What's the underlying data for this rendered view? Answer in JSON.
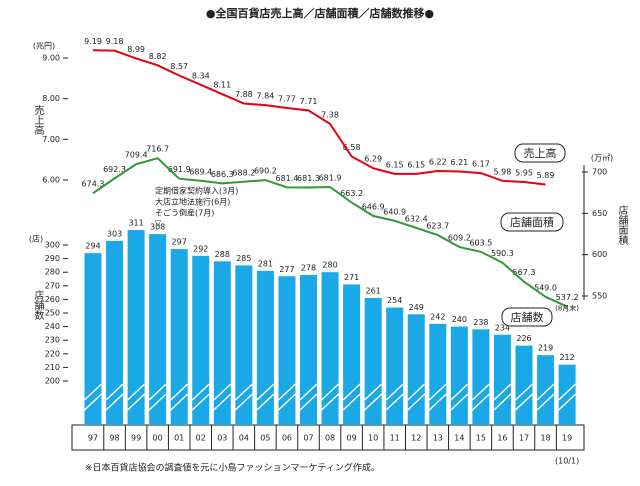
{
  "chart_data": {
    "type": "bar_line",
    "title": "●全国百貨店売上高／店舗面積／店舗数推移●",
    "footnote": "※日本百貨店協会の調査値を元に小島ファッションマーケティング作成。",
    "categories": [
      "97",
      "98",
      "99",
      "00",
      "01",
      "02",
      "03",
      "04",
      "05",
      "06",
      "07",
      "08",
      "09",
      "10",
      "11",
      "12",
      "13",
      "14",
      "15",
      "16",
      "17",
      "18",
      "19"
    ],
    "last_category_note": "(10/1)",
    "ylabel": "売上高",
    "yunit": "(兆円)",
    "ylim": [
      6,
      9
    ],
    "yticks": [
      {
        "value": 6,
        "label": "6.00"
      },
      {
        "value": 7,
        "label": "7.00"
      },
      {
        "value": 8,
        "label": "8.00"
      },
      {
        "value": 9,
        "label": "9.00"
      }
    ],
    "y2label": "店舗面積",
    "y2unit": "(万㎡)",
    "y2lim": [
      550,
      700
    ],
    "y2ticks": [
      550,
      600,
      650,
      700
    ],
    "y3label": "店舗数",
    "y3unit": "(店)",
    "y3lim": [
      200,
      300
    ],
    "y3ticks": [
      200,
      210,
      220,
      230,
      240,
      250,
      260,
      270,
      280,
      290,
      300
    ],
    "series": [
      {
        "name": "店舗数",
        "type": "bar",
        "axis": "y3",
        "color": "#1ba8e6",
        "values": [
          294,
          303,
          311,
          308,
          297,
          292,
          288,
          285,
          281,
          277,
          278,
          280,
          271,
          261,
          254,
          249,
          242,
          240,
          238,
          234,
          226,
          219,
          212
        ]
      },
      {
        "name": "店舗面積",
        "type": "line",
        "axis": "y2",
        "color": "#2e9b36",
        "values": [
          674.3,
          692.3,
          709.4,
          716.7,
          691.9,
          689.4,
          686.3,
          688.2,
          690.2,
          681.4,
          681.3,
          681.9,
          663.2,
          646.9,
          640.9,
          632.4,
          623.7,
          609.2,
          603.5,
          590.3,
          567.3,
          549.0,
          537.2
        ],
        "value_labels": [
          "674.3",
          "692.3",
          "709.4",
          "716.7",
          "691.9",
          "689.4",
          "686.3",
          "688.2",
          "690.2",
          "681.4",
          "681.3",
          "681.9",
          "663.2",
          "646.9",
          "640.9",
          "632.4",
          "623.7",
          "609.2",
          "603.5",
          "590.3",
          "567.3",
          "549.0",
          "537.2"
        ],
        "last_note": "(8月末)"
      },
      {
        "name": "売上高",
        "type": "line",
        "axis": "y",
        "color": "#e60012",
        "values": [
          9.19,
          9.18,
          8.99,
          8.82,
          8.57,
          8.34,
          8.11,
          7.88,
          7.84,
          7.77,
          7.71,
          7.38,
          6.58,
          6.29,
          6.15,
          6.15,
          6.22,
          6.21,
          6.17,
          5.98,
          5.95,
          5.89,
          null
        ]
      }
    ],
    "annotation": {
      "lines": [
        "定期借家契約導入(3月)",
        "大店立地法施行(6月)",
        "そごう倒産(7月)"
      ],
      "marker": "▽"
    }
  }
}
